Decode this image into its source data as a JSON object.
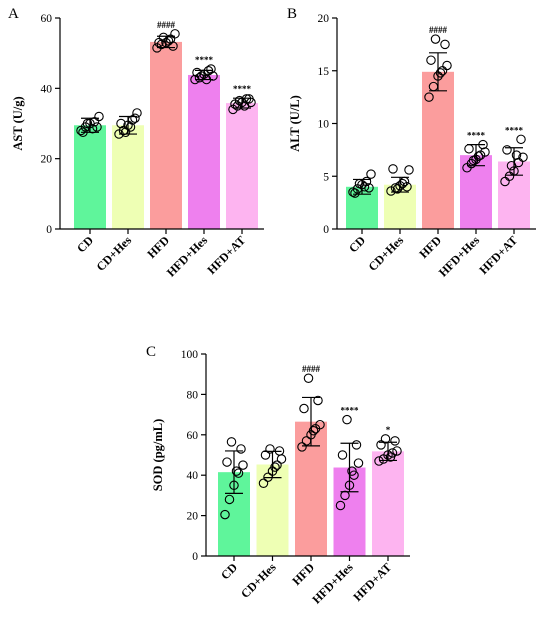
{
  "chart_data": [
    {
      "type": "bar",
      "panel": "A",
      "ylabel": "AST (U/g)",
      "ylim": [
        0,
        60
      ],
      "yticks": [
        0,
        20,
        40,
        60
      ],
      "categories": [
        "CD",
        "CD+Hes",
        "HFD",
        "HFD+Hes",
        "HFD+AT"
      ],
      "values": [
        29.5,
        29.5,
        53.2,
        43.8,
        35.8
      ],
      "errors": [
        2.0,
        2.5,
        1.6,
        1.3,
        1.4
      ],
      "significance": [
        "",
        "",
        "####",
        "****",
        "****"
      ],
      "colors": [
        "#5ff59b",
        "#eeffb4",
        "#fb9d9d",
        "#ee80ee",
        "#fdb4f0"
      ],
      "points": [
        [
          28,
          29,
          30,
          30.5,
          32,
          27.5,
          29,
          30,
          28.5
        ],
        [
          27,
          28,
          29.5,
          31,
          33,
          30,
          31.5,
          27.5,
          29
        ],
        [
          51.5,
          52.5,
          53,
          54,
          55.5,
          53,
          52,
          54.5,
          53.5
        ],
        [
          42.5,
          43,
          44,
          45,
          43.5,
          44.5,
          45.5,
          43.5,
          42.5
        ],
        [
          34,
          35,
          36,
          37,
          36,
          35.5,
          37,
          36.5,
          35
        ]
      ]
    },
    {
      "type": "bar",
      "panel": "B",
      "ylabel": "ALT (U/L)",
      "ylim": [
        0,
        20
      ],
      "yticks": [
        0,
        5,
        10,
        15,
        20
      ],
      "categories": [
        "CD",
        "CD+Hes",
        "HFD",
        "HFD+Hes",
        "HFD+AT"
      ],
      "values": [
        4.0,
        4.2,
        14.9,
        7.0,
        6.4
      ],
      "errors": [
        0.7,
        0.7,
        1.8,
        1.0,
        1.3
      ],
      "significance": [
        "",
        "",
        "####",
        "****",
        "****"
      ],
      "colors": [
        "#5ff59b",
        "#eeffb4",
        "#fb9d9d",
        "#ee80ee",
        "#fdb4f0"
      ],
      "points": [
        [
          3.5,
          3.8,
          4.2,
          4.5,
          5.2,
          3.4,
          3.9,
          4.3,
          4.0
        ],
        [
          3.6,
          3.9,
          4.1,
          4.5,
          5.6,
          5.7,
          4.0,
          3.8,
          4.3
        ],
        [
          12.5,
          13.5,
          14.5,
          15.0,
          15.5,
          16.0,
          17.5,
          18.0,
          14.8
        ],
        [
          5.8,
          6.2,
          6.6,
          7.0,
          7.3,
          7.6,
          8.0,
          6.5,
          6.9
        ],
        [
          4.5,
          5.0,
          5.5,
          6.3,
          6.8,
          7.5,
          8.5,
          6.0,
          7.0
        ]
      ]
    },
    {
      "type": "bar",
      "panel": "C",
      "ylabel": "SOD (pg/mL)",
      "ylim": [
        0,
        100
      ],
      "yticks": [
        0,
        20,
        40,
        60,
        80,
        100
      ],
      "categories": [
        "CD",
        "CD+Hes",
        "HFD",
        "HFD+Hes",
        "HFD+AT"
      ],
      "values": [
        41.5,
        45.3,
        66.5,
        43.8,
        51.8
      ],
      "errors": [
        10.5,
        6.5,
        12.0,
        12.0,
        4.5
      ],
      "significance": [
        "",
        "",
        "####",
        "****",
        "*"
      ],
      "colors": [
        "#5ff59b",
        "#eeffb4",
        "#fb9d9d",
        "#ee80ee",
        "#fdb4f0"
      ],
      "points": [
        [
          20.5,
          28,
          35,
          41,
          45,
          46.5,
          53,
          56.5,
          42
        ],
        [
          36,
          39,
          42,
          45,
          48,
          50,
          52,
          53,
          44
        ],
        [
          54,
          57,
          60,
          63,
          65,
          73,
          77,
          88,
          62
        ],
        [
          25,
          30,
          35,
          40,
          46,
          50,
          55,
          67.5,
          42
        ],
        [
          47,
          48,
          50,
          51,
          52,
          55,
          57,
          58,
          49
        ]
      ]
    }
  ]
}
